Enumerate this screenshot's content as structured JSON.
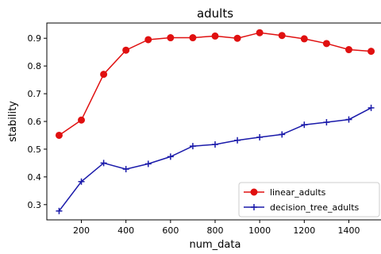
{
  "chart_data": {
    "type": "line",
    "title": "adults",
    "xlabel": "num_data",
    "ylabel": "stability",
    "xlim": [
      45,
      1555
    ],
    "ylim": [
      0.245,
      0.955
    ],
    "xticks": [
      200,
      400,
      600,
      800,
      1000,
      1200,
      1400
    ],
    "yticks": [
      0.3,
      0.4,
      0.5,
      0.6,
      0.7,
      0.8,
      0.9
    ],
    "grid": false,
    "legend_position": "lower-right",
    "x": [
      100,
      200,
      300,
      400,
      500,
      600,
      700,
      800,
      900,
      1000,
      1100,
      1200,
      1300,
      1400,
      1500
    ],
    "series": [
      {
        "name": "linear_adults",
        "color": "#e01010",
        "marker": "circle",
        "values": [
          0.55,
          0.605,
          0.77,
          0.857,
          0.895,
          0.902,
          0.902,
          0.908,
          0.9,
          0.92,
          0.91,
          0.898,
          0.881,
          0.859,
          0.853
        ]
      },
      {
        "name": "decision_tree_adults",
        "color": "#1a1aaa",
        "marker": "plus",
        "values": [
          0.277,
          0.383,
          0.45,
          0.428,
          0.447,
          0.473,
          0.511,
          0.517,
          0.532,
          0.543,
          0.553,
          0.588,
          0.597,
          0.607,
          0.649
        ]
      }
    ]
  }
}
